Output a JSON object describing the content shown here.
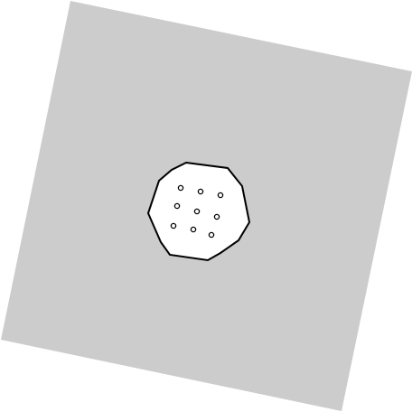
{
  "colors": {
    "page_background": "#ffffff",
    "plate_fill": "#cccccc",
    "cutout_fill": "#ffffff",
    "cutout_outline": "#000000",
    "hole_outline": "#000000"
  },
  "plate": {
    "shape": "rotated-square",
    "rotation_degrees": 13
  },
  "cutout": {
    "shape": "irregular-octagon",
    "hole_count": 9,
    "hole_layout": "3x3 grid"
  }
}
